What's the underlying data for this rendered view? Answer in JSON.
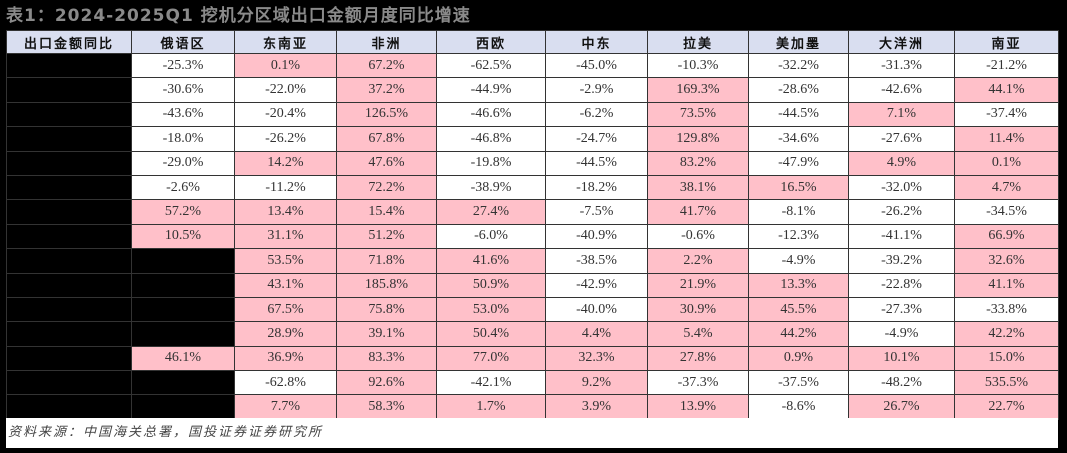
{
  "title": "表1：2024-2025Q1 挖机分区域出口金额月度同比增速",
  "colors": {
    "header_bg": "#d9def0",
    "positive_bg": "#ffc0c9",
    "negative_bg": "#ffffff",
    "blank_bg": "#000000"
  },
  "table": {
    "row_header_label": "出口金额同比",
    "columns": [
      "俄语区",
      "东南亚",
      "非洲",
      "西欧",
      "中东",
      "拉美",
      "美加墨",
      "大洋洲",
      "南亚"
    ],
    "rows": [
      [
        "-25.3%",
        "0.1%",
        "67.2%",
        "-62.5%",
        "-45.0%",
        "-10.3%",
        "-32.2%",
        "-31.3%",
        "-21.2%"
      ],
      [
        "-30.6%",
        "-22.0%",
        "37.2%",
        "-44.9%",
        "-2.9%",
        "169.3%",
        "-28.6%",
        "-42.6%",
        "44.1%"
      ],
      [
        "-43.6%",
        "-20.4%",
        "126.5%",
        "-46.6%",
        "-6.2%",
        "73.5%",
        "-44.5%",
        "7.1%",
        "-37.4%"
      ],
      [
        "-18.0%",
        "-26.2%",
        "67.8%",
        "-46.8%",
        "-24.7%",
        "129.8%",
        "-34.6%",
        "-27.6%",
        "11.4%"
      ],
      [
        "-29.0%",
        "14.2%",
        "47.6%",
        "-19.8%",
        "-44.5%",
        "83.2%",
        "-47.9%",
        "4.9%",
        "0.1%"
      ],
      [
        "-2.6%",
        "-11.2%",
        "72.2%",
        "-38.9%",
        "-18.2%",
        "38.1%",
        "16.5%",
        "-32.0%",
        "4.7%"
      ],
      [
        "57.2%",
        "13.4%",
        "15.4%",
        "27.4%",
        "-7.5%",
        "41.7%",
        "-8.1%",
        "-26.2%",
        "-34.5%"
      ],
      [
        "10.5%",
        "31.1%",
        "51.2%",
        "-6.0%",
        "-40.9%",
        "-0.6%",
        "-12.3%",
        "-41.1%",
        "66.9%"
      ],
      [
        "",
        "53.5%",
        "71.8%",
        "41.6%",
        "-38.5%",
        "2.2%",
        "-4.9%",
        "-39.2%",
        "32.6%"
      ],
      [
        "",
        "43.1%",
        "185.8%",
        "50.9%",
        "-42.9%",
        "21.9%",
        "13.3%",
        "-22.8%",
        "41.1%"
      ],
      [
        "",
        "67.5%",
        "75.8%",
        "53.0%",
        "-40.0%",
        "30.9%",
        "45.5%",
        "-27.3%",
        "-33.8%"
      ],
      [
        "",
        "28.9%",
        "39.1%",
        "50.4%",
        "4.4%",
        "5.4%",
        "44.2%",
        "-4.9%",
        "42.2%"
      ],
      [
        "46.1%",
        "36.9%",
        "83.3%",
        "77.0%",
        "32.3%",
        "27.8%",
        "0.9%",
        "10.1%",
        "15.0%"
      ],
      [
        "",
        "-62.8%",
        "92.6%",
        "-42.1%",
        "9.2%",
        "-37.3%",
        "-37.5%",
        "-48.2%",
        "535.5%"
      ],
      [
        "",
        "7.7%",
        "58.3%",
        "1.7%",
        "3.9%",
        "13.9%",
        "-8.6%",
        "26.7%",
        "22.7%"
      ]
    ]
  },
  "footer": {
    "source": "资料来源：中国海关总署，国投证券证券研究所"
  }
}
